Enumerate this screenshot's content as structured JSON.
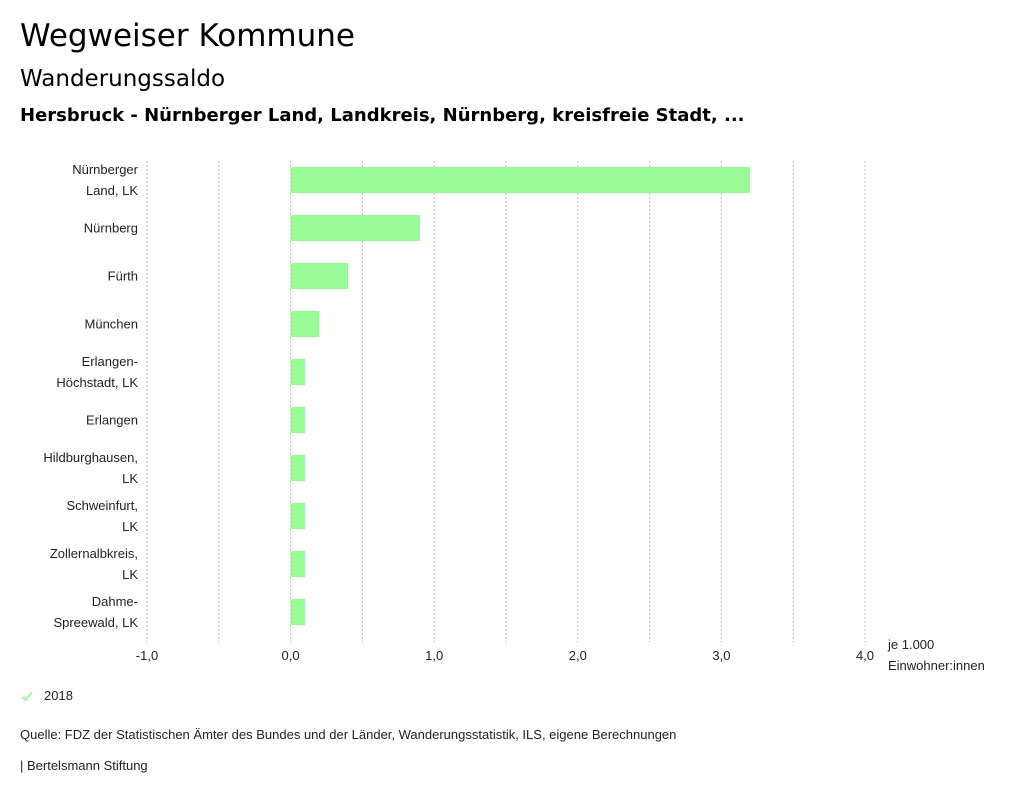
{
  "header": {
    "title": "Wegweiser Kommune",
    "subtitle": "Wanderungssaldo",
    "region": "Hersbruck - Nürnberger Land, Landkreis, Nürnberg, kreisfreie Stadt, ..."
  },
  "chart_data": {
    "type": "bar",
    "orientation": "horizontal",
    "categories": [
      [
        "Nürnberger",
        "Land, LK"
      ],
      [
        "Nürnberg"
      ],
      [
        "Fürth"
      ],
      [
        "München"
      ],
      [
        "Erlangen-",
        "Höchstadt, LK"
      ],
      [
        "Erlangen"
      ],
      [
        "Hildburghausen,",
        "LK"
      ],
      [
        "Schweinfurt,",
        "LK"
      ],
      [
        "Zollernalbkreis,",
        "LK"
      ],
      [
        "Dahme-",
        "Spreewald, LK"
      ]
    ],
    "series": [
      {
        "name": "2018",
        "values": [
          3.2,
          0.9,
          0.4,
          0.2,
          0.1,
          0.1,
          0.1,
          0.1,
          0.1,
          0.1
        ]
      }
    ],
    "xlim": [
      -1.0,
      4.0
    ],
    "xticks": [
      -1.0,
      0.0,
      1.0,
      2.0,
      3.0,
      4.0
    ],
    "xtick_labels": [
      "-1,0",
      "0,0",
      "1,0",
      "2,0",
      "3,0",
      "4,0"
    ],
    "gridlines": [
      -1.0,
      -0.5,
      0.0,
      0.5,
      1.0,
      1.5,
      2.0,
      2.5,
      3.0,
      3.5,
      4.0
    ],
    "xlabel": [
      "je 1.000",
      "Einwohner:innen"
    ],
    "bar_color": "#98fb98",
    "grid_color": "#a8a8a8"
  },
  "legend": {
    "label": "2018",
    "color": "#98fb98"
  },
  "footer": {
    "source": "Quelle: FDZ der Statistischen Ämter des Bundes und der Länder, Wanderungsstatistik, ILS, eigene Berechnungen",
    "brand": "| Bertelsmann Stiftung"
  }
}
